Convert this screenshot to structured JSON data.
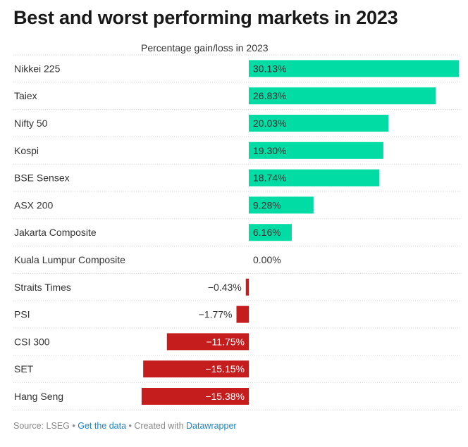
{
  "title": "Best and worst performing markets in 2023",
  "chart_data": {
    "type": "bar",
    "orientation": "horizontal",
    "title": "Best and worst performing markets in 2023",
    "subtitle": "Percentage gain/loss in 2023",
    "xlim": [
      -15.38,
      30.13
    ],
    "categories": [
      "Nikkei 225",
      "Taiex",
      "Nifty 50",
      "Kospi",
      "BSE Sensex",
      "ASX 200",
      "Jakarta Composite",
      "Kuala Lumpur Composite",
      "Straits Times",
      "PSI",
      "CSI 300",
      "SET",
      "Hang Seng"
    ],
    "values": [
      30.13,
      26.83,
      20.03,
      19.3,
      18.74,
      9.28,
      6.16,
      0.0,
      -0.43,
      -1.77,
      -11.75,
      -15.15,
      -15.38
    ],
    "labels": [
      "30.13%",
      "26.83%",
      "20.03%",
      "19.30%",
      "18.74%",
      "9.28%",
      "6.16%",
      "0.00%",
      "−0.43%",
      "−1.77%",
      "−11.75%",
      "−15.15%",
      "−15.38%"
    ],
    "colors": {
      "positive": "#00dca4",
      "negative": "#c51d1d"
    }
  },
  "footer": {
    "source": "Source: LSEG",
    "sep1": " • ",
    "get_data": "Get the data",
    "sep2": " • Created with ",
    "tool": "Datawrapper"
  }
}
